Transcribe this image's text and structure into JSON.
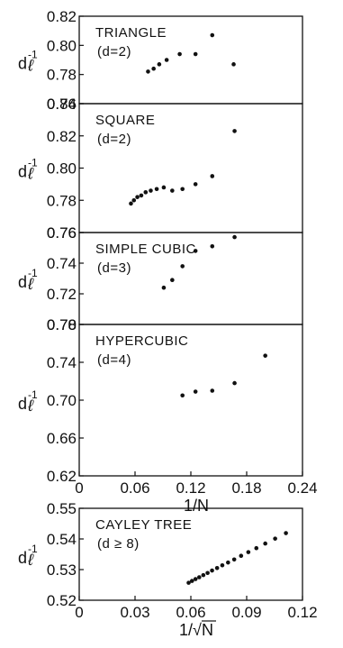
{
  "chart_data": [
    {
      "type": "scatter",
      "label": "TRIANGLE",
      "sublabel": "(d=2)",
      "ylabel": "d_l^-1",
      "ylim": [
        0.76,
        0.82
      ],
      "yticks": [
        "0.82",
        "0.80",
        "0.78",
        "0.76"
      ],
      "xlim": [
        0,
        0.24
      ],
      "points": [
        [
          0.074,
          0.782
        ],
        [
          0.08,
          0.784
        ],
        [
          0.086,
          0.787
        ],
        [
          0.094,
          0.79
        ],
        [
          0.108,
          0.794
        ],
        [
          0.125,
          0.794
        ],
        [
          0.143,
          0.807
        ],
        [
          0.166,
          0.787
        ]
      ]
    },
    {
      "type": "scatter",
      "label": "SQUARE",
      "sublabel": "(d=2)",
      "ylabel": "d_l^-1",
      "ylim": [
        0.76,
        0.84
      ],
      "yticks": [
        "0.84",
        "0.82",
        "0.80",
        "0.78",
        "0.76"
      ],
      "xlim": [
        0,
        0.24
      ],
      "points": [
        [
          0.0556,
          0.778
        ],
        [
          0.0588,
          0.78
        ],
        [
          0.0625,
          0.782
        ],
        [
          0.0667,
          0.783
        ],
        [
          0.0714,
          0.785
        ],
        [
          0.0769,
          0.786
        ],
        [
          0.0833,
          0.787
        ],
        [
          0.0909,
          0.788
        ],
        [
          0.1,
          0.786
        ],
        [
          0.111,
          0.787
        ],
        [
          0.125,
          0.79
        ],
        [
          0.143,
          0.795
        ],
        [
          0.167,
          0.823
        ]
      ]
    },
    {
      "type": "scatter",
      "label": "SIMPLE CUBIC",
      "sublabel": "(d=3)",
      "ylabel": "d_l^-1",
      "ylim": [
        0.7,
        0.76
      ],
      "yticks": [
        "0.76",
        "0.74",
        "0.72",
        "0.70"
      ],
      "xlim": [
        0,
        0.24
      ],
      "points": [
        [
          0.0909,
          0.724
        ],
        [
          0.1,
          0.729
        ],
        [
          0.111,
          0.738
        ],
        [
          0.125,
          0.748
        ],
        [
          0.143,
          0.751
        ],
        [
          0.167,
          0.757
        ]
      ]
    },
    {
      "type": "scatter",
      "label": "HYPERCUBIC",
      "sublabel": "(d=4)",
      "ylabel": "d_l^-1",
      "ylim": [
        0.62,
        0.78
      ],
      "yticks": [
        "0.78",
        "0.74",
        "0.70",
        "0.66",
        "0.62"
      ],
      "xlim": [
        0,
        0.24
      ],
      "xticks": [
        "0",
        "0.06",
        "0.12",
        "0.18",
        "0.24"
      ],
      "xtick_values": [
        0,
        0.06,
        0.12,
        0.18,
        0.24
      ],
      "xlabel": "1/N",
      "points": [
        [
          0.111,
          0.705
        ],
        [
          0.125,
          0.709
        ],
        [
          0.143,
          0.71
        ],
        [
          0.167,
          0.718
        ],
        [
          0.2,
          0.747
        ]
      ]
    },
    {
      "type": "scatter",
      "label": "CAYLEY TREE",
      "sublabel": "(d ≥ 8)",
      "ylabel": "d_l^-1",
      "ylim": [
        0.52,
        0.55
      ],
      "yticks": [
        "0.55",
        "0.54",
        "0.53",
        "0.52"
      ],
      "xlim": [
        0,
        0.12
      ],
      "xticks": [
        "0",
        "0.03",
        "0.06",
        "0.09",
        "0.12"
      ],
      "xtick_values": [
        0,
        0.03,
        0.06,
        0.09,
        0.12
      ],
      "xlabel": "1/√N",
      "points": [
        [
          0.0588,
          0.5257
        ],
        [
          0.0606,
          0.5263
        ],
        [
          0.0625,
          0.5269
        ],
        [
          0.0645,
          0.5275
        ],
        [
          0.0667,
          0.5282
        ],
        [
          0.069,
          0.5289
        ],
        [
          0.0714,
          0.5297
        ],
        [
          0.0741,
          0.5305
        ],
        [
          0.0769,
          0.5314
        ],
        [
          0.08,
          0.5323
        ],
        [
          0.0833,
          0.5333
        ],
        [
          0.087,
          0.5345
        ],
        [
          0.0909,
          0.5357
        ],
        [
          0.0952,
          0.537
        ],
        [
          0.1,
          0.5385
        ],
        [
          0.1053,
          0.5401
        ],
        [
          0.1111,
          0.5419
        ]
      ]
    }
  ]
}
